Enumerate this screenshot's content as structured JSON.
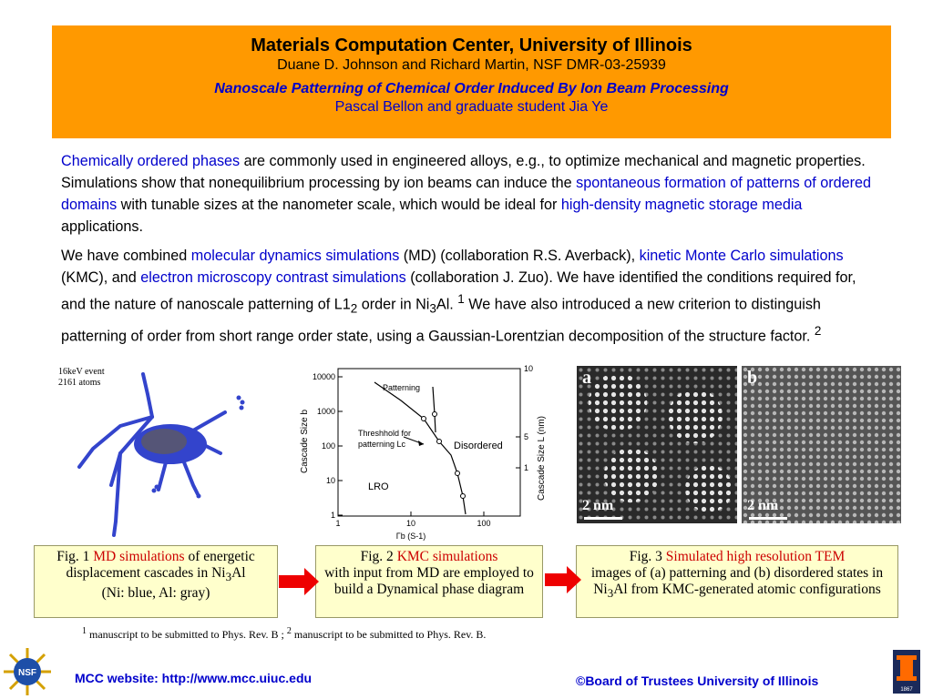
{
  "header": {
    "title": "Materials Computation Center, University of Illinois",
    "authors": "Duane D. Johnson and Richard Martin, NSF DMR-03-25939",
    "subtitle": "Nanoscale Patterning of Chemical Order Induced By Ion Beam Processing",
    "subauthors": "Pascal Bellon and graduate student Jia Ye"
  },
  "para1": {
    "h1": "Chemically ordered phases",
    "t1": " are commonly used in engineered alloys, e.g., to optimize mechanical and magnetic properties. Simulations show that nonequilibrium processing by ion beams can induce the ",
    "h2": "spontaneous formation of patterns of ordered domains",
    "t2": " with tunable sizes at the nanometer scale, which would be ideal for ",
    "h3": "high-density magnetic storage media",
    "t3": " applications."
  },
  "para2": {
    "t0": "We have combined ",
    "h1": "molecular dynamics simulations",
    "t1": " (MD) (collaboration R.S. Averback), ",
    "h2": "kinetic Monte Carlo simulations",
    "t2": " (KMC), and ",
    "h3": "electron microscopy contrast simulations",
    "t3": " (collaboration J. Zuo). We have identified the conditions required for, and the nature of nanoscale patterning of L1",
    "sub1": "2",
    "t4": " order in Ni",
    "sub2": "3",
    "t5": "Al. ",
    "sup1": "1",
    "t6": " We have also introduced a new criterion to  distinguish patterning of order from short range order state, using a Gaussian-Lorentzian decomposition of the structure factor. ",
    "sup2": "2"
  },
  "fig1": {
    "event": "16keV event",
    "atoms": "2161 atoms",
    "cap_a": "Fig. 1 ",
    "cap_hl": "MD simulations",
    "cap_b": " of energetic displacement cascades in Ni",
    "cap_sub": "3",
    "cap_c": "Al",
    "cap_d": "(Ni: blue, Al: gray)"
  },
  "fig2": {
    "ylabel_left": "Cascade Size b",
    "ylabel_right": "Cascade Size L (nm)",
    "xlabel": "Γb (S-1)",
    "yticks": [
      "10000",
      "1000",
      "100",
      "10",
      "1"
    ],
    "xticks": [
      "1",
      "10",
      "100"
    ],
    "rticks": [
      "10",
      "5",
      "1"
    ],
    "label_patterning": "Patterning",
    "label_threshold1": "Threshhold for",
    "label_threshold2": "patterning Lc",
    "label_disordered": "Disordered",
    "label_lro": "LRO",
    "cap_a": "Fig. 2 ",
    "cap_hl": "KMC simulations",
    "cap_b": "with input from MD are employed to build a Dynamical phase diagram"
  },
  "fig3": {
    "label_a": "a",
    "label_b": "b",
    "scale_a": "2 nm",
    "scale_b": "2 nm",
    "cap_a": "Fig. 3 ",
    "cap_hl": "Simulated high resolution TEM",
    "cap_b": "images of (a) patterning and (b) disordered states in Ni",
    "cap_sub": "3",
    "cap_c": "Al from KMC-generated atomic configurations"
  },
  "footnote": {
    "s1": "1",
    "t1": " manuscript to be submitted to Phys. Rev. B ; ",
    "s2": "2",
    "t2": " manuscript to be submitted to Phys. Rev. B."
  },
  "footer": {
    "website": "MCC website:  http://www.mcc.uiuc.edu",
    "copyright": "©Board of Trustees University of Illinois",
    "nsf_logo_text": "NSF",
    "illinois_year": "1867"
  },
  "colors": {
    "header_bg": "#ff9900",
    "highlight": "#0000cc",
    "caption_bg": "#ffffcc",
    "arrow": "#ee0000"
  }
}
